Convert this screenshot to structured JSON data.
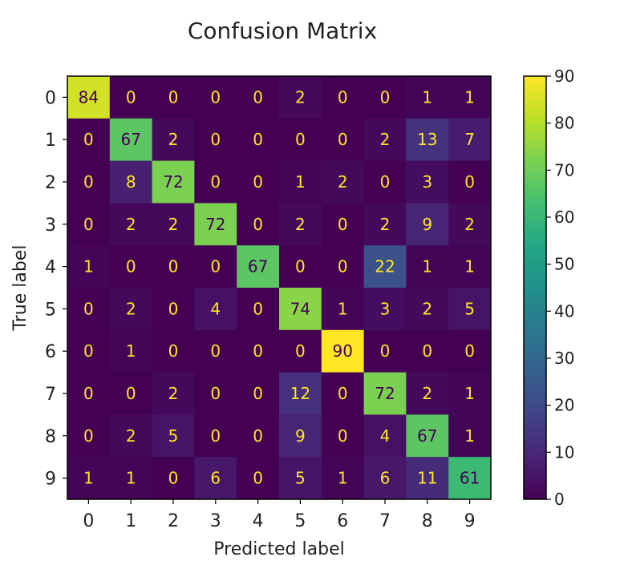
{
  "chart_data": {
    "type": "heatmap",
    "title": "Confusion Matrix",
    "xlabel": "Predicted label",
    "ylabel": "True label",
    "x_categories": [
      "0",
      "1",
      "2",
      "3",
      "4",
      "5",
      "6",
      "7",
      "8",
      "9"
    ],
    "y_categories": [
      "0",
      "1",
      "2",
      "3",
      "4",
      "5",
      "6",
      "7",
      "8",
      "9"
    ],
    "values": [
      [
        84,
        0,
        0,
        0,
        0,
        2,
        0,
        0,
        1,
        1
      ],
      [
        0,
        67,
        2,
        0,
        0,
        0,
        0,
        2,
        13,
        7
      ],
      [
        0,
        8,
        72,
        0,
        0,
        1,
        2,
        0,
        3,
        0
      ],
      [
        0,
        2,
        2,
        72,
        0,
        2,
        0,
        2,
        9,
        2
      ],
      [
        1,
        0,
        0,
        0,
        67,
        0,
        0,
        22,
        1,
        1
      ],
      [
        0,
        2,
        0,
        4,
        0,
        74,
        1,
        3,
        2,
        5
      ],
      [
        0,
        1,
        0,
        0,
        0,
        0,
        90,
        0,
        0,
        0
      ],
      [
        0,
        0,
        2,
        0,
        0,
        12,
        0,
        72,
        2,
        1
      ],
      [
        0,
        2,
        5,
        0,
        0,
        9,
        0,
        4,
        67,
        1
      ],
      [
        1,
        1,
        0,
        6,
        0,
        5,
        1,
        6,
        11,
        61
      ]
    ],
    "colormap": "viridis",
    "colorbar": {
      "min": 0,
      "max": 90,
      "ticks": [
        0,
        10,
        20,
        30,
        40,
        50,
        60,
        70,
        80,
        90
      ]
    },
    "grid": false
  }
}
